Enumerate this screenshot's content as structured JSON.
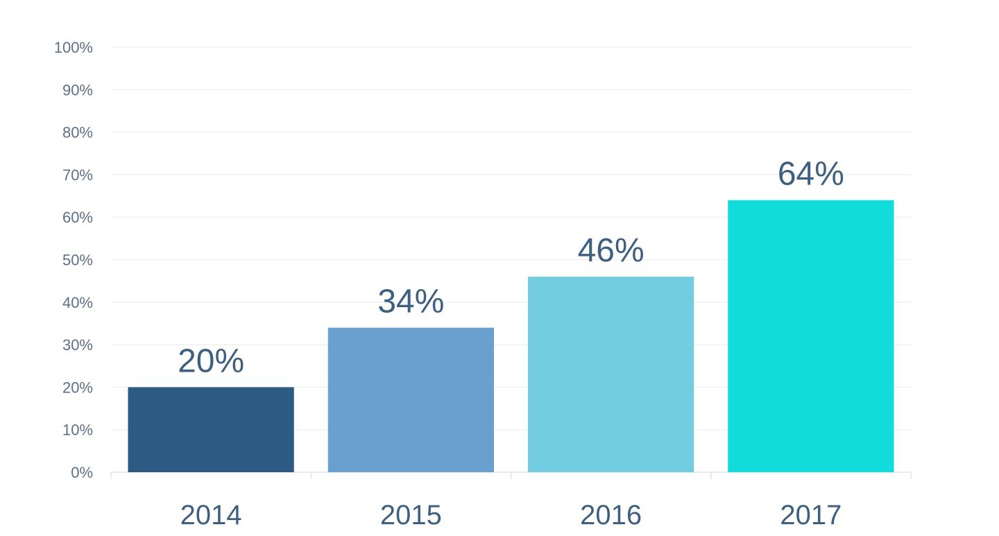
{
  "chart_data": {
    "type": "bar",
    "categories": [
      "2014",
      "2015",
      "2016",
      "2017"
    ],
    "values": [
      20,
      34,
      46,
      64
    ],
    "data_labels": [
      "20%",
      "34%",
      "46%",
      "64%"
    ],
    "bar_colors": [
      "#2b5a83",
      "#6aa0d0",
      "#72cde0",
      "#12dbdb"
    ],
    "ylim": [
      0,
      100
    ],
    "y_ticks": [
      0,
      10,
      20,
      30,
      40,
      50,
      60,
      70,
      80,
      90,
      100
    ],
    "y_tick_labels": [
      "0%",
      "10%",
      "20%",
      "30%",
      "40%",
      "50%",
      "60%",
      "70%",
      "80%",
      "90%",
      "100%"
    ],
    "grid": true,
    "legend": "none",
    "title": "",
    "xlabel": "",
    "ylabel": ""
  }
}
